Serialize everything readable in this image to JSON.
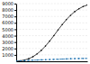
{
  "chart_data": {
    "type": "line",
    "x": [
      2015,
      2020,
      2025,
      2030,
      2035,
      2040,
      2045,
      2050,
      2055,
      2060,
      2065,
      2070,
      2075,
      2080,
      2085,
      2090,
      2095,
      2100
    ],
    "series": [
      {
        "color": "#111111",
        "marker": "point",
        "line_style": "solid",
        "values": [
          20,
          80,
          200,
          400,
          720,
          1150,
          1700,
          2380,
          3150,
          4000,
          4880,
          5730,
          6500,
          7180,
          7750,
          8200,
          8540,
          8780
        ]
      },
      {
        "color": "#1a6faf",
        "marker": "point",
        "line_style": "dashed",
        "values": [
          20,
          55,
          95,
          135,
          170,
          200,
          225,
          250,
          275,
          300,
          325,
          350,
          375,
          400,
          420,
          435,
          445,
          450
        ]
      }
    ],
    "xlim": [
      2015,
      2100
    ],
    "ylim": [
      0,
      9000
    ],
    "yticks": [
      1000,
      2000,
      3000,
      4000,
      5000,
      6000,
      7000,
      8000,
      9000
    ],
    "grid": true,
    "tick_labels": "y"
  }
}
